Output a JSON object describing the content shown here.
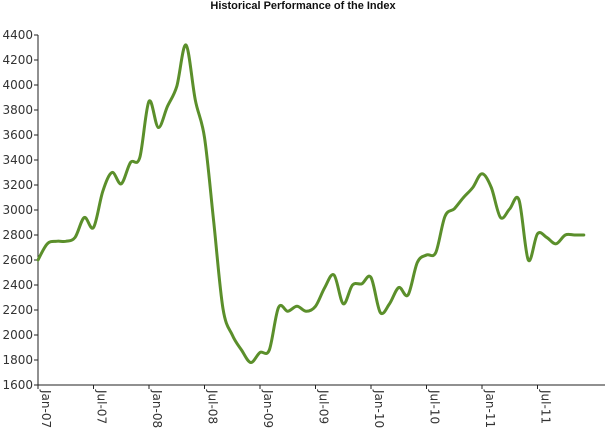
{
  "chart_data": {
    "type": "line",
    "title": "Historical Performance of the Index",
    "xlabel": "",
    "ylabel": "",
    "ylim": [
      1600,
      4400
    ],
    "y_ticks": [
      1600,
      1800,
      2000,
      2200,
      2400,
      2600,
      2800,
      3000,
      3200,
      3400,
      3600,
      3800,
      4000,
      4200,
      4400
    ],
    "x_ticks": [
      "Jan-07",
      "Jul-07",
      "Jan-08",
      "Jul-08",
      "Jan-09",
      "Jul-09",
      "Jan-10",
      "Jul-10",
      "Jan-11",
      "Jul-11"
    ],
    "grid": false,
    "colors": {
      "line": "#5b8f2b",
      "axis": "#222222"
    },
    "series": [
      {
        "x": [
          "2007-01",
          "2007-02",
          "2007-03",
          "2007-04",
          "2007-05",
          "2007-06",
          "2007-07",
          "2007-08",
          "2007-09",
          "2007-10",
          "2007-11",
          "2007-12",
          "2008-01",
          "2008-02",
          "2008-03",
          "2008-04",
          "2008-05",
          "2008-06",
          "2008-07",
          "2008-08",
          "2008-09",
          "2008-10",
          "2008-11",
          "2008-12",
          "2009-01",
          "2009-02",
          "2009-03",
          "2009-04",
          "2009-05",
          "2009-06",
          "2009-07",
          "2009-08",
          "2009-09",
          "2009-10",
          "2009-11",
          "2009-12",
          "2010-01",
          "2010-02",
          "2010-03",
          "2010-04",
          "2010-05",
          "2010-06",
          "2010-07",
          "2010-08",
          "2010-09",
          "2010-10",
          "2010-11",
          "2010-12",
          "2011-01",
          "2011-02",
          "2011-03",
          "2011-04",
          "2011-05",
          "2011-06",
          "2011-07",
          "2011-08",
          "2011-09",
          "2011-10",
          "2011-11",
          "2011-12"
        ],
        "values": [
          2600,
          2730,
          2750,
          2750,
          2780,
          2940,
          2860,
          3150,
          3300,
          3210,
          3380,
          3420,
          3870,
          3660,
          3830,
          3990,
          4320,
          3880,
          3580,
          2900,
          2210,
          2000,
          1880,
          1780,
          1860,
          1880,
          2220,
          2190,
          2230,
          2190,
          2230,
          2380,
          2480,
          2250,
          2400,
          2410,
          2460,
          2180,
          2250,
          2380,
          2320,
          2580,
          2640,
          2660,
          2950,
          3010,
          3100,
          3180,
          3290,
          3180,
          2940,
          3010,
          3080,
          2600,
          2810,
          2780,
          2730,
          2800,
          2800,
          2800
        ]
      }
    ]
  }
}
